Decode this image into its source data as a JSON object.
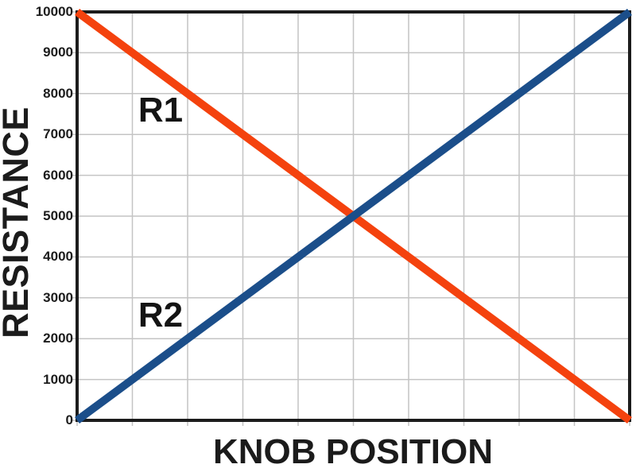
{
  "chart_data": {
    "type": "line",
    "title": "",
    "xlabel": "KNOB POSITION",
    "ylabel": "RESISTANCE",
    "xlim": [
      0,
      10
    ],
    "ylim": [
      0,
      10000
    ],
    "y_ticks": [
      0,
      1000,
      2000,
      3000,
      4000,
      5000,
      6000,
      7000,
      8000,
      9000,
      10000
    ],
    "x_gridlines": [
      0,
      1,
      2,
      3,
      4,
      5,
      6,
      7,
      8,
      9,
      10
    ],
    "x_tick_labels": [],
    "grid": true,
    "legend_position": "inline-labels",
    "axis_color": "#1c1c1c",
    "grid_color": "#c4c4c4",
    "series": [
      {
        "name": "R1",
        "color": "#f4420e",
        "x": [
          0,
          10
        ],
        "values": [
          10000,
          0
        ],
        "label": {
          "text": "R1",
          "x": 1.51,
          "y": 7580
        }
      },
      {
        "name": "R2",
        "color": "#1b4e8a",
        "x": [
          0,
          10
        ],
        "values": [
          0,
          10000
        ],
        "label": {
          "text": "R2",
          "x": 1.51,
          "y": 2570
        }
      }
    ]
  }
}
